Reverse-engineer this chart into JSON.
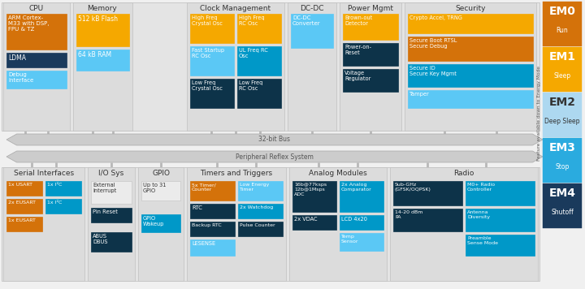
{
  "fig_bg": "#f0f0f0",
  "colors": {
    "orange": "#D4720A",
    "yellow_orange": "#F5A800",
    "light_blue": "#5BC8F5",
    "mid_blue": "#0098C8",
    "dark_teal": "#0D3349",
    "dark_navy": "#1A3A5C",
    "gray_panel": "#DCDCDC",
    "panel_bg": "#E4E4E4",
    "connector_gray": "#B8B8B8",
    "arrow_gray": "#C0C0C0",
    "em0": "#D4720A",
    "em1": "#F5A800",
    "em2": "#ADD8F0",
    "em3": "#2AABDF",
    "em4": "#1A3A5C",
    "white": "#FFFFFF",
    "text_dark": "#333333",
    "light_gray_box": "#EBEBEB"
  },
  "em_labels": [
    {
      "label": "EM0",
      "sub": "Run",
      "color": "#D4720A",
      "tc": "#FFFFFF"
    },
    {
      "label": "EM1",
      "sub": "Sleep",
      "color": "#F5A800",
      "tc": "#FFFFFF"
    },
    {
      "label": "EM2",
      "sub": "Deep Sleep",
      "color": "#ADD8F0",
      "tc": "#333333"
    },
    {
      "label": "EM3",
      "sub": "Stop",
      "color": "#2AABDF",
      "tc": "#FFFFFF"
    },
    {
      "label": "EM4",
      "sub": "Shutoff",
      "color": "#1A3A5C",
      "tc": "#FFFFFF"
    }
  ],
  "sidebar_text": "Feature available down to Energy Mode"
}
